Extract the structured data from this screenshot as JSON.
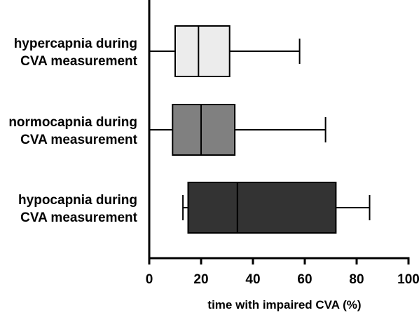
{
  "chart_data": {
    "type": "boxplot",
    "orientation": "horizontal",
    "categories": [
      [
        "hypercapnia during",
        "CVA measurement"
      ],
      [
        "normocapnia during",
        "CVA measurement"
      ],
      [
        "hypocapnia during",
        "CVA measurement"
      ]
    ],
    "boxes": [
      {
        "min": 0,
        "q1": 10,
        "median": 19,
        "q3": 31,
        "max": 58,
        "fill": "#ececec"
      },
      {
        "min": 0,
        "q1": 9,
        "median": 20,
        "q3": 33,
        "max": 68,
        "fill": "#808080"
      },
      {
        "min": 13,
        "q1": 15,
        "median": 34,
        "q3": 72,
        "max": 85,
        "fill": "#333333"
      }
    ],
    "xlabel": "time with impaired CVA (%)",
    "xlim": [
      0,
      100
    ],
    "xticks": [
      0,
      20,
      40,
      60,
      80,
      100
    ],
    "grid": false
  }
}
